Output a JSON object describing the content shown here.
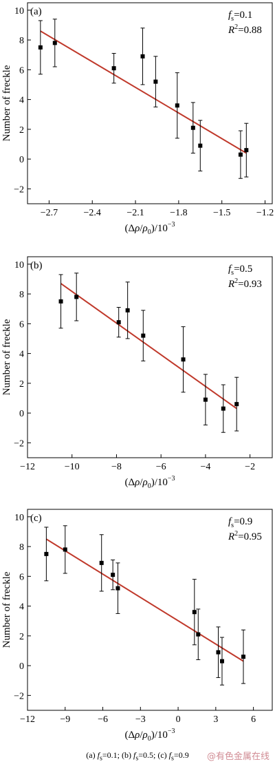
{
  "caption": "(a) fs=0.1; (b) fs=0.5; (c) fs=0.9",
  "caption_parts": {
    "a_label": "(a) ",
    "b_label": "; (b) ",
    "c_label": "; (c) ",
    "a_val": "=0.1",
    "b_val": "=0.5",
    "c_val": "=0.9",
    "f": "f",
    "s": "s"
  },
  "watermark": "@有色金属在线",
  "colors": {
    "fit_line": "#c0392b",
    "points": "#000000",
    "axes": "#000000"
  },
  "chart_data": [
    {
      "panel_label": "(a)",
      "type": "scatter",
      "fs_value": "0.1",
      "r2_value": "0.88",
      "xlabel": "(Δρ/ρ0)/10−3",
      "ylabel": "Number of freckle",
      "xlim": [
        -2.85,
        -1.15
      ],
      "ylim": [
        -3,
        10.5
      ],
      "xticks": [
        -2.7,
        -2.4,
        -2.1,
        -1.8,
        -1.5,
        -1.2
      ],
      "xtick_labels": [
        "−2.7",
        "−2.4",
        "−2.1",
        "−1.8",
        "−1.5",
        "−1.2"
      ],
      "yticks": [
        -2,
        0,
        2,
        4,
        6,
        8,
        10
      ],
      "ytick_labels": [
        "−2",
        "0",
        "2",
        "4",
        "6",
        "8",
        "10"
      ],
      "points": [
        {
          "x": -2.76,
          "y": 7.5,
          "err": 1.8
        },
        {
          "x": -2.66,
          "y": 7.8,
          "err": 1.6
        },
        {
          "x": -2.25,
          "y": 6.1,
          "err": 1.0
        },
        {
          "x": -2.05,
          "y": 6.9,
          "err": 1.9
        },
        {
          "x": -1.96,
          "y": 5.2,
          "err": 1.7
        },
        {
          "x": -1.81,
          "y": 3.6,
          "err": 2.2
        },
        {
          "x": -1.7,
          "y": 2.1,
          "err": 1.7
        },
        {
          "x": -1.65,
          "y": 0.9,
          "err": 1.7
        },
        {
          "x": -1.37,
          "y": 0.3,
          "err": 1.6
        },
        {
          "x": -1.33,
          "y": 0.6,
          "err": 1.8
        }
      ],
      "fit": {
        "x": [
          -2.76,
          -1.33
        ],
        "y": [
          8.6,
          0.4
        ]
      }
    },
    {
      "panel_label": "(b)",
      "type": "scatter",
      "fs_value": "0.5",
      "r2_value": "0.93",
      "xlabel": "(Δρ/ρ0)/10−3",
      "ylabel": "Number of freckle",
      "xlim": [
        -12,
        -1
      ],
      "ylim": [
        -3,
        10.5
      ],
      "xticks": [
        -12,
        -10,
        -8,
        -6,
        -4,
        -2
      ],
      "xtick_labels": [
        "−12",
        "−10",
        "−8",
        "−6",
        "−4",
        "−2"
      ],
      "yticks": [
        -2,
        0,
        2,
        4,
        6,
        8,
        10
      ],
      "ytick_labels": [
        "−2",
        "0",
        "2",
        "4",
        "6",
        "8",
        "10"
      ],
      "points": [
        {
          "x": -10.5,
          "y": 7.5,
          "err": 1.8
        },
        {
          "x": -9.8,
          "y": 7.8,
          "err": 1.6
        },
        {
          "x": -7.9,
          "y": 6.1,
          "err": 1.0
        },
        {
          "x": -7.5,
          "y": 6.9,
          "err": 1.9
        },
        {
          "x": -6.8,
          "y": 5.2,
          "err": 1.7
        },
        {
          "x": -5.0,
          "y": 3.6,
          "err": 2.2
        },
        {
          "x": -4.0,
          "y": 0.9,
          "err": 1.7
        },
        {
          "x": -3.2,
          "y": 0.3,
          "err": 1.6
        },
        {
          "x": -2.6,
          "y": 0.6,
          "err": 1.8
        }
      ],
      "fit": {
        "x": [
          -10.5,
          -2.6
        ],
        "y": [
          8.7,
          0.3
        ]
      }
    },
    {
      "panel_label": "(c)",
      "type": "scatter",
      "fs_value": "0.9",
      "r2_value": "0.95",
      "xlabel": "(Δρ/ρ0)/10−3",
      "ylabel": "Number of freckle",
      "xlim": [
        -12,
        7.5
      ],
      "ylim": [
        -3,
        10.5
      ],
      "xticks": [
        -12,
        -9,
        -6,
        -3,
        0,
        3,
        6
      ],
      "xtick_labels": [
        "−12",
        "−9",
        "−6",
        "−3",
        "0",
        "3",
        "6"
      ],
      "yticks": [
        -2,
        0,
        2,
        4,
        6,
        8,
        10
      ],
      "ytick_labels": [
        "−2",
        "0",
        "2",
        "4",
        "6",
        "8",
        "10"
      ],
      "points": [
        {
          "x": -10.5,
          "y": 7.5,
          "err": 1.8
        },
        {
          "x": -9.0,
          "y": 7.8,
          "err": 1.6
        },
        {
          "x": -6.1,
          "y": 6.9,
          "err": 1.9
        },
        {
          "x": -5.2,
          "y": 6.1,
          "err": 1.0
        },
        {
          "x": -4.8,
          "y": 5.2,
          "err": 1.7
        },
        {
          "x": 1.3,
          "y": 3.6,
          "err": 2.2
        },
        {
          "x": 1.6,
          "y": 2.1,
          "err": 1.7
        },
        {
          "x": 3.2,
          "y": 0.9,
          "err": 1.7
        },
        {
          "x": 3.5,
          "y": 0.3,
          "err": 1.6
        },
        {
          "x": 5.2,
          "y": 0.6,
          "err": 1.8
        }
      ],
      "fit": {
        "x": [
          -10.5,
          5.2
        ],
        "y": [
          8.5,
          0.3
        ]
      }
    }
  ]
}
